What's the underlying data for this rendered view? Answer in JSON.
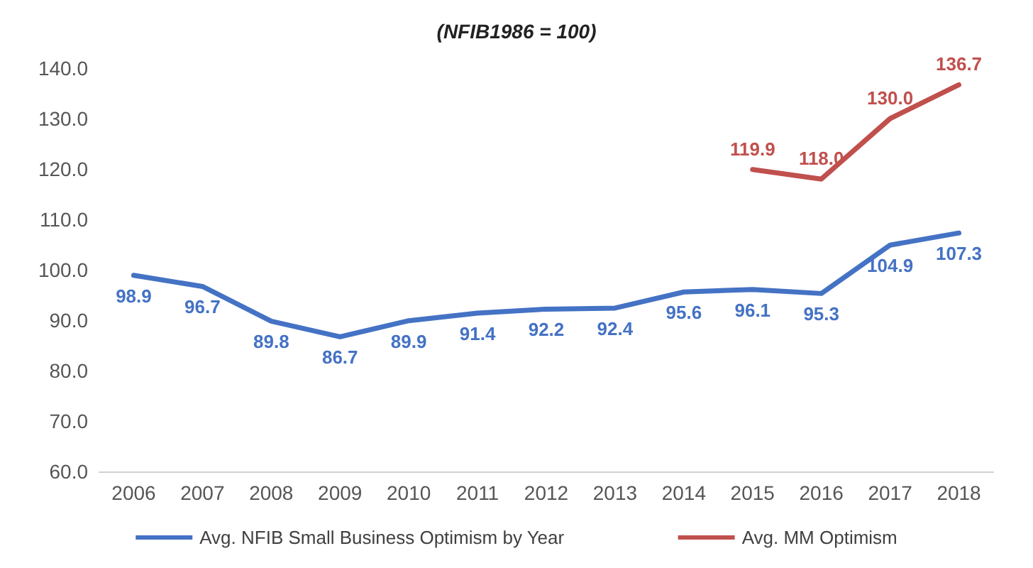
{
  "chart_data": {
    "type": "line",
    "title": "(NFIB1986 = 100)",
    "categories": [
      "2006",
      "2007",
      "2008",
      "2009",
      "2010",
      "2011",
      "2012",
      "2013",
      "2014",
      "2015",
      "2016",
      "2017",
      "2018"
    ],
    "series": [
      {
        "name": "Avg. NFIB Small Business Optimism by Year",
        "color": "#4472c4",
        "values": [
          98.9,
          96.7,
          89.8,
          86.7,
          89.9,
          91.4,
          92.2,
          92.4,
          95.6,
          96.1,
          95.3,
          104.9,
          107.3
        ]
      },
      {
        "name": "Avg. MM Optimism",
        "color": "#c0504d",
        "values": [
          null,
          null,
          null,
          null,
          null,
          null,
          null,
          null,
          null,
          119.9,
          118.0,
          130.0,
          136.7
        ],
        "value_labels": [
          null,
          null,
          null,
          null,
          null,
          null,
          null,
          null,
          null,
          "119.9",
          "118.0",
          "130.0",
          "136.7"
        ]
      }
    ],
    "ylim": [
      60,
      140
    ],
    "yticks": [
      {
        "value": 60,
        "label": "60.0"
      },
      {
        "value": 70,
        "label": "70.0"
      },
      {
        "value": 80,
        "label": "80.0"
      },
      {
        "value": 90,
        "label": "90.0"
      },
      {
        "value": 100,
        "label": "100.0"
      },
      {
        "value": 110,
        "label": "110.0"
      },
      {
        "value": 120,
        "label": "120.0"
      },
      {
        "value": 130,
        "label": "130.0"
      },
      {
        "value": 140,
        "label": "140.0"
      }
    ],
    "data_labels": true,
    "legend": "bottom",
    "grid": false,
    "marker": "none",
    "line_style": "solid"
  }
}
